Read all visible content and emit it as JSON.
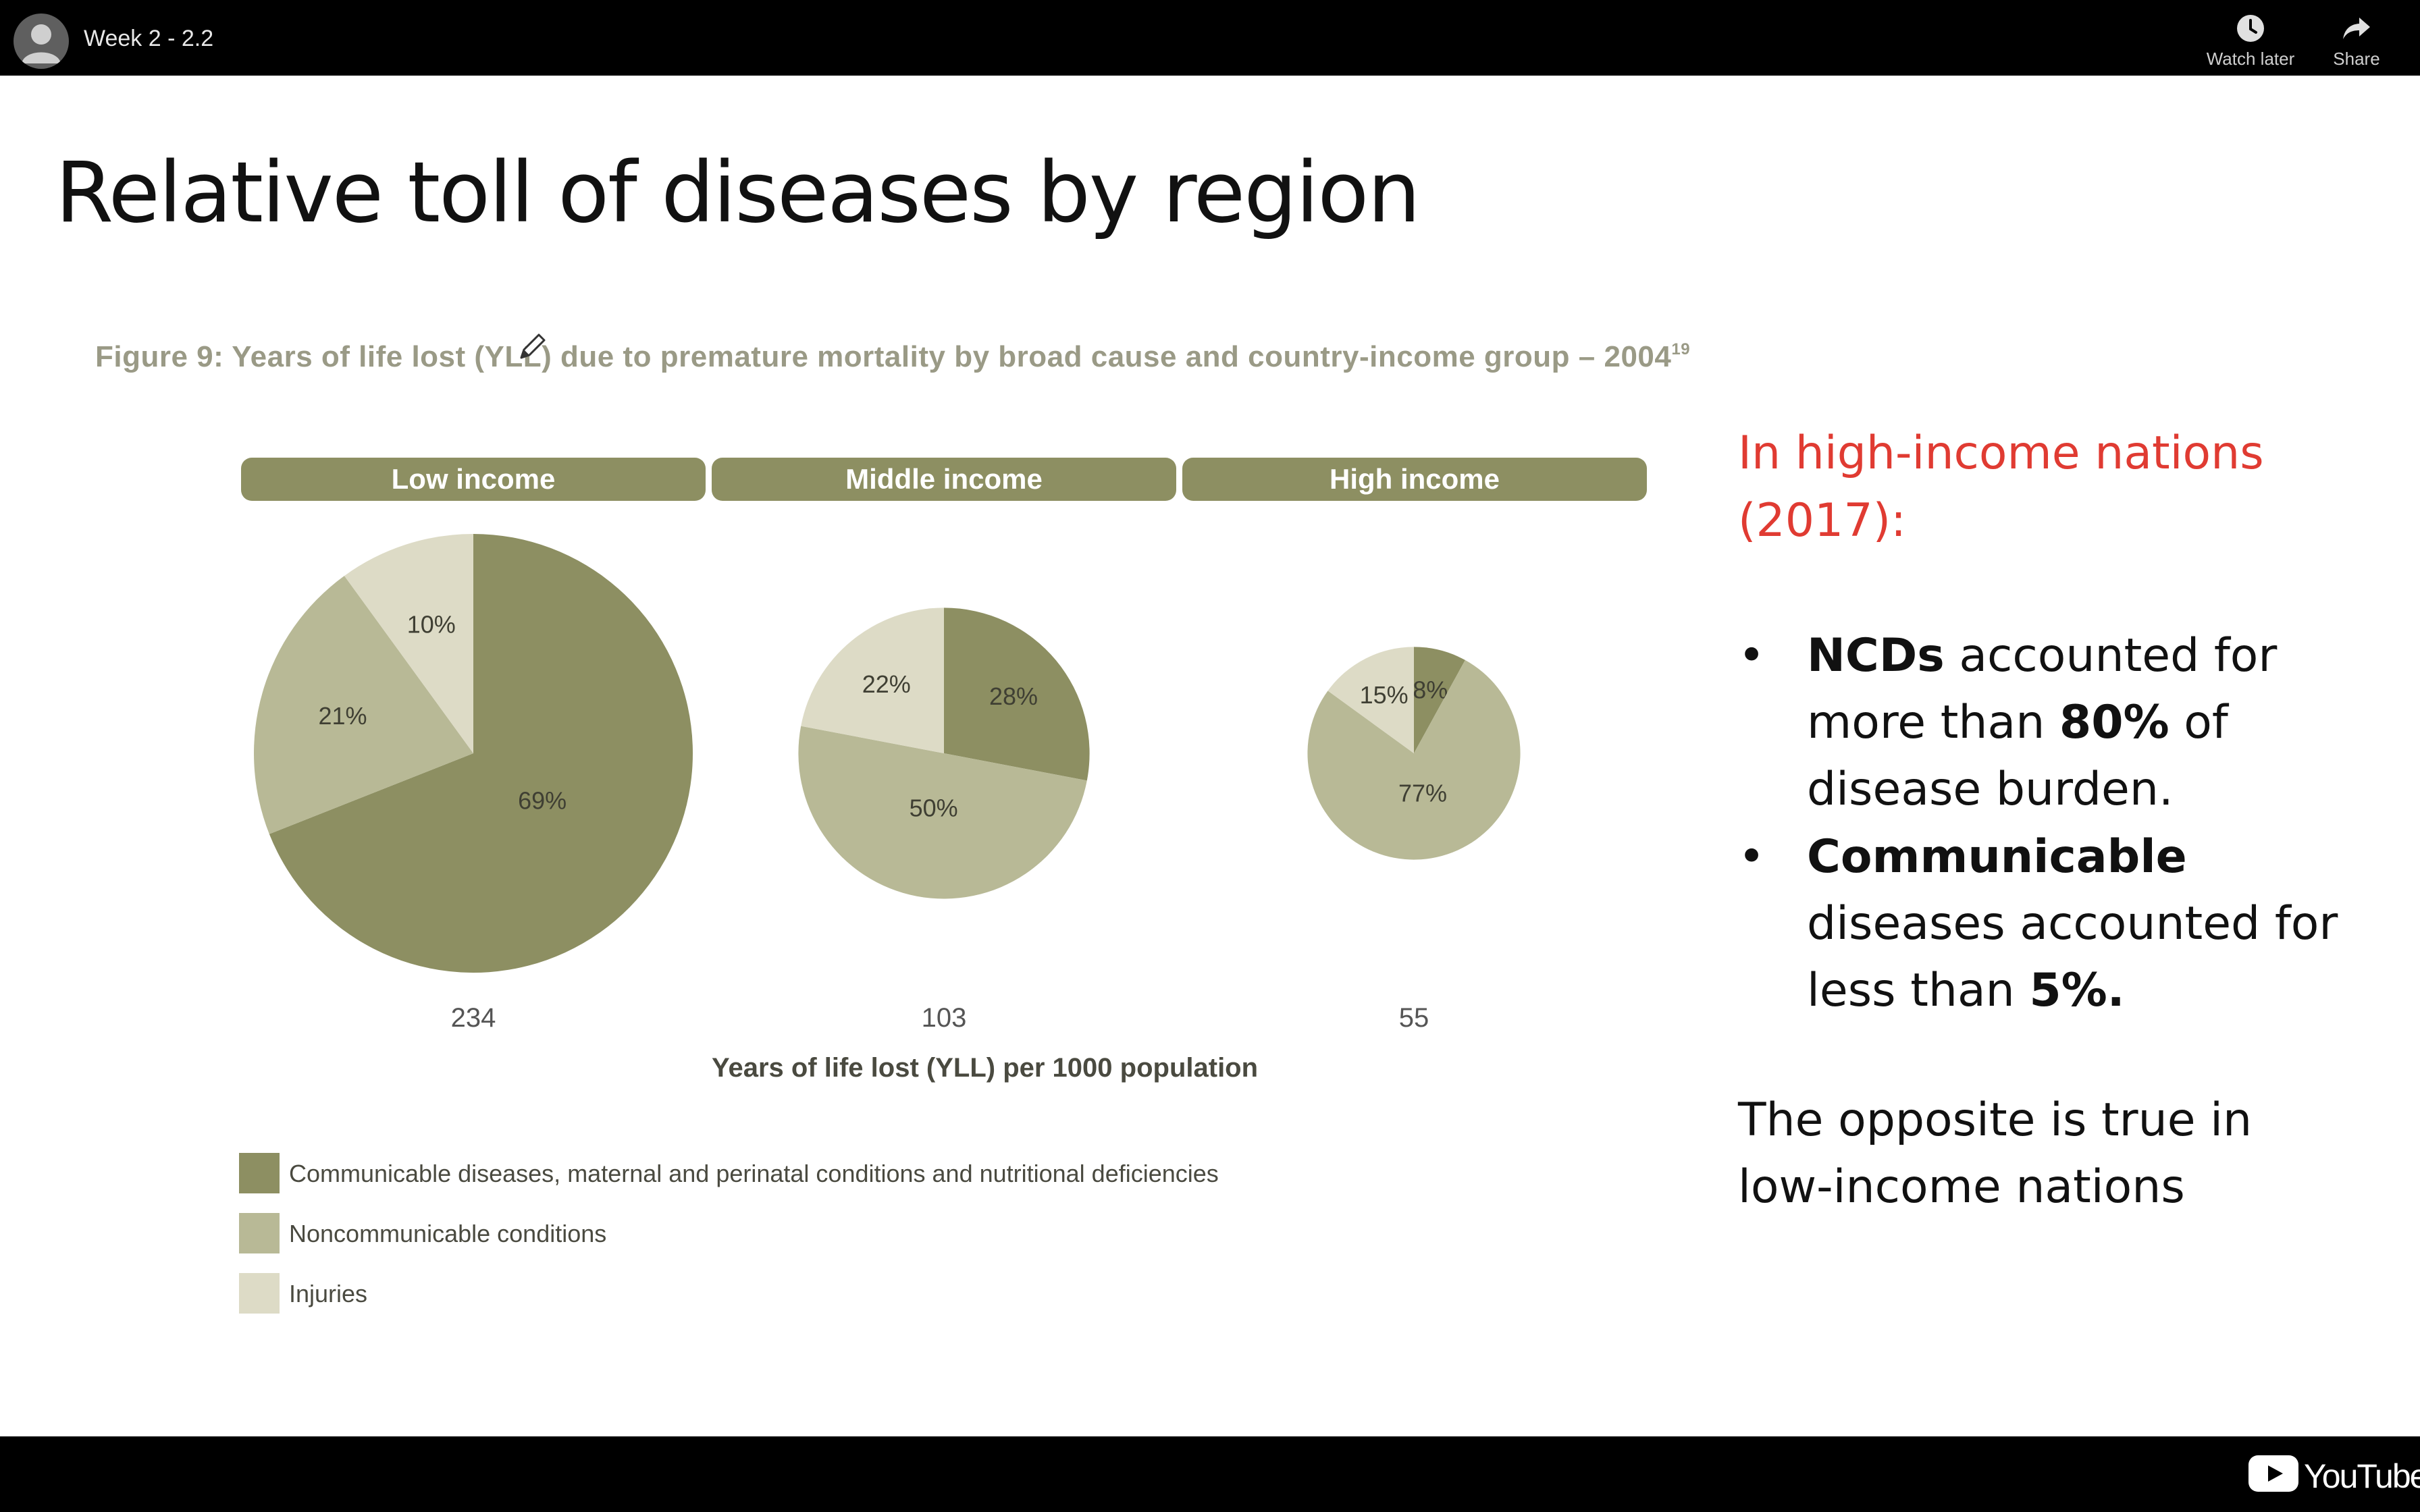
{
  "video": {
    "title": "Week 2 - 2.2",
    "watch_later_label": "Watch later",
    "share_label": "Share",
    "brand": "YouTube"
  },
  "slide": {
    "title": "Relative toll of diseases by region",
    "figure_caption": "Figure 9: Years of life lost (YLL) due to premature mortality by broad cause and country-income group – 2004",
    "figure_caption_sup": "19",
    "panel": {
      "heading": "In high-income nations (2017):",
      "bullet1": {
        "bold": "NCDs",
        "text1": " accounted for more than ",
        "bold2": "80%",
        "text2": " of disease burden."
      },
      "bullet2": {
        "bold": "Communicable",
        "text1": " diseases accounted for less than ",
        "bold2": "5%."
      },
      "footer": "The opposite is true in low-income nations"
    }
  },
  "chart_data": {
    "type": "pie",
    "title": "Figure 9: Years of life lost (YLL) due to premature mortality by broad cause and country-income group – 2004",
    "xlabel": "Years of life lost (YLL) per 1000 population",
    "categories": [
      "Communicable diseases, maternal and perinatal conditions and nutritional deficiencies",
      "Noncommunicable conditions",
      "Injuries"
    ],
    "colors": [
      "#8d8f62",
      "#b8b996",
      "#dddbc6"
    ],
    "pies": [
      {
        "name": "Low income",
        "total": 234,
        "values": [
          69,
          21,
          10
        ],
        "labels": [
          "69%",
          "21%",
          "10%"
        ]
      },
      {
        "name": "Middle income",
        "total": 103,
        "values": [
          28,
          50,
          22
        ],
        "labels": [
          "28%",
          "50%",
          "22%"
        ]
      },
      {
        "name": "High income",
        "total": 55,
        "values": [
          8,
          77,
          15
        ],
        "labels": [
          "8%",
          "77%",
          "15%"
        ]
      }
    ],
    "legend": [
      {
        "label": "Communicable diseases, maternal and perinatal conditions and nutritional deficiencies",
        "color": "#8d8f62"
      },
      {
        "label": "Noncommunicable conditions",
        "color": "#b8b996"
      },
      {
        "label": "Injuries",
        "color": "#dddbc6"
      }
    ],
    "legend_placement": "bottom-left"
  }
}
